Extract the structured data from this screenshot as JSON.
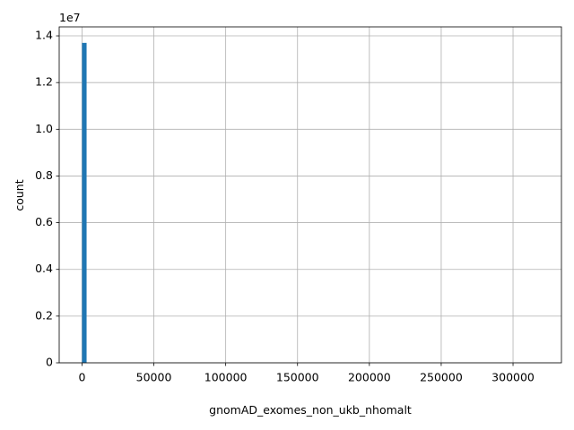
{
  "chart_data": {
    "type": "histogram",
    "xlabel": "gnomAD_exomes_non_ukb_nhomalt",
    "ylabel": "count",
    "y_offset": "1e7",
    "color": "#1f77b4",
    "grid": true,
    "bins": [
      0,
      3178,
      6356,
      9534,
      12712,
      15890,
      19068,
      22246,
      25424,
      28602,
      31780,
      34958,
      38136,
      41314,
      44492,
      47670,
      50848,
      54026,
      57204,
      60382,
      63560,
      66738,
      69916,
      73094,
      76272,
      79450,
      82628,
      85806,
      88984,
      92162,
      95340,
      98518,
      101696,
      104874,
      108052,
      111230,
      114408,
      117586,
      120764,
      123942,
      127120,
      130298,
      133476,
      136654,
      139832,
      143010,
      146188,
      149366,
      152544,
      155722,
      158900,
      162078,
      165256,
      168434,
      171612,
      174790,
      177968,
      181146,
      184324,
      187502,
      190680,
      193858,
      197036,
      200214,
      203392,
      206570,
      209748,
      212926,
      216104,
      219282,
      222460,
      225638,
      228816,
      231994,
      235172,
      238350,
      241528,
      244706,
      247884,
      251062,
      254240,
      257418,
      260596,
      263774,
      266952,
      270130,
      273308,
      276486,
      279664,
      282842,
      286020,
      289198,
      292376,
      295554,
      298732,
      301910,
      305088,
      308266,
      311444,
      314622,
      317800
    ],
    "counts": [
      13700000,
      0,
      0,
      0,
      0,
      0,
      0,
      0,
      0,
      0,
      0,
      0,
      0,
      0,
      0,
      0,
      0,
      0,
      0,
      0,
      0,
      0,
      0,
      0,
      0,
      0,
      0,
      0,
      0,
      0,
      0,
      0,
      0,
      0,
      0,
      0,
      0,
      0,
      0,
      0,
      0,
      0,
      0,
      0,
      0,
      0,
      0,
      0,
      0,
      0,
      0,
      0,
      0,
      0,
      0,
      0,
      0,
      0,
      0,
      0,
      0,
      0,
      0,
      0,
      0,
      0,
      0,
      0,
      0,
      0,
      0,
      0,
      0,
      0,
      0,
      0,
      0,
      0,
      0,
      0,
      0,
      0,
      0,
      0,
      0,
      0,
      0,
      0,
      0,
      0,
      0,
      0,
      0,
      0,
      0,
      0,
      0,
      0,
      0,
      0
    ],
    "xlim": [
      -15890,
      333690
    ],
    "ylim": [
      0,
      14385000
    ],
    "xticks": [
      0,
      50000,
      100000,
      150000,
      200000,
      250000,
      300000
    ],
    "yticks": [
      0,
      {
        "value": 2000000,
        "label": "0.2"
      },
      {
        "value": 4000000,
        "label": "0.4"
      },
      {
        "value": 6000000,
        "label": "0.6"
      },
      {
        "value": 8000000,
        "label": "0.8"
      },
      {
        "value": 10000000,
        "label": "1.0"
      },
      {
        "value": 12000000,
        "label": "1.2"
      },
      {
        "value": 14000000,
        "label": "1.4"
      }
    ]
  }
}
